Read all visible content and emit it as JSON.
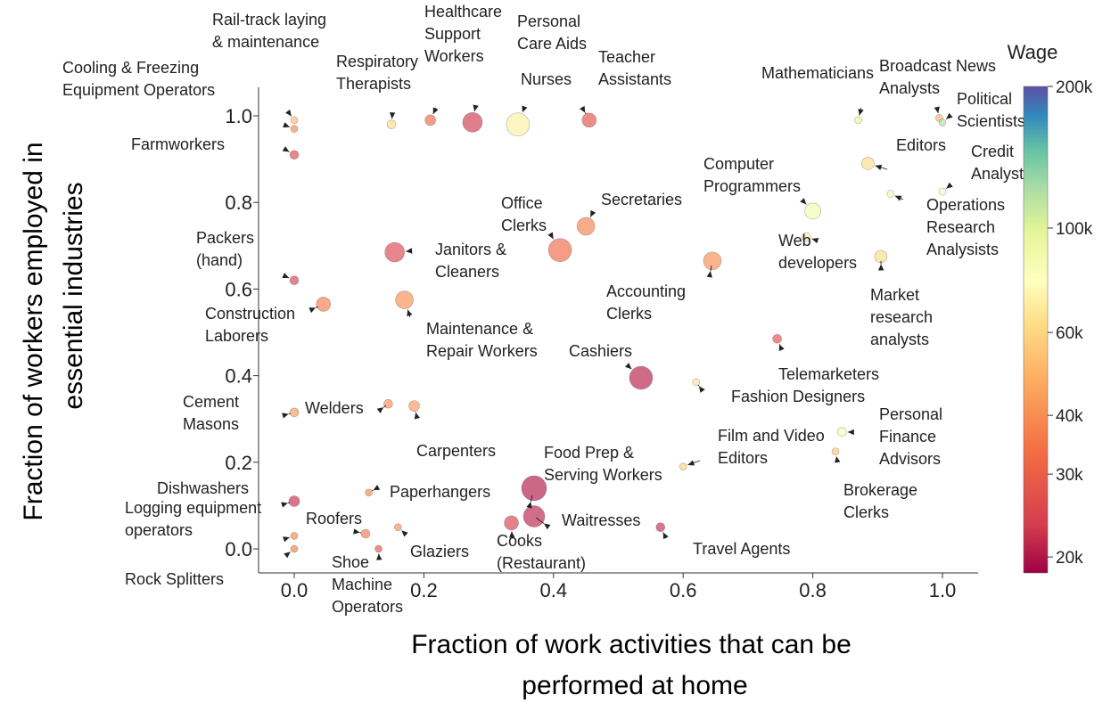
{
  "chart_data": {
    "type": "scatter",
    "xlabel": [
      "Fraction of work activities that can be",
      "performed at home"
    ],
    "ylabel": [
      "Fraction of workers employed in",
      "essential industries"
    ],
    "xlim": [
      -0.05,
      1.05
    ],
    "ylim": [
      -0.05,
      1.07
    ],
    "xticks": [
      0.0,
      0.2,
      0.4,
      0.6,
      0.8,
      1.0
    ],
    "xtick_labels": [
      "0.0",
      "0.2",
      "0.4",
      "0.6",
      "0.8",
      "1.0"
    ],
    "yticks": [
      0.0,
      0.2,
      0.4,
      0.6,
      0.8,
      1.0
    ],
    "ytick_labels": [
      "0.0",
      "0.2",
      "0.4",
      "0.6",
      "0.8",
      "1.0"
    ],
    "grid": false,
    "colorbar": {
      "title": "Wage",
      "scale": "log",
      "range": [
        18500,
        200000
      ],
      "ticks": [
        20000,
        30000,
        40000,
        60000,
        100000,
        200000
      ],
      "tick_labels": [
        "20k",
        "30k",
        "40k",
        "60k",
        "100k",
        "200k"
      ],
      "colormap": "Spectral",
      "colors": [
        "#9e0142",
        "#d53e4f",
        "#f46d43",
        "#fdae61",
        "#fee08b",
        "#ffffbf",
        "#e6f598",
        "#abdda4",
        "#66c2a5",
        "#3288bd",
        "#5e4fa2"
      ]
    },
    "marker_alpha": 0.65,
    "labeled_occupations": [
      {
        "label": "Rail-track laying\n& maintenance",
        "x": 0.0,
        "y": 0.99,
        "wage": 52000,
        "size": 4
      },
      {
        "label": "Cooling & Freezing\nEquipment Operators",
        "x": 0.0,
        "y": 0.97,
        "wage": 38000,
        "size": 4
      },
      {
        "label": "Farmworkers",
        "x": 0.0,
        "y": 0.91,
        "wage": 25000,
        "size": 5
      },
      {
        "label": "Respiratory\nTherapists",
        "x": 0.15,
        "y": 0.98,
        "wage": 62000,
        "size": 5
      },
      {
        "label": "Healthcare\nSupport\nWorkers",
        "x": 0.21,
        "y": 0.99,
        "wage": 32000,
        "size": 6
      },
      {
        "label": "Personal\nCare Aids",
        "x": 0.275,
        "y": 0.985,
        "wage": 23000,
        "size": 11
      },
      {
        "label": "Nurses",
        "x": 0.345,
        "y": 0.98,
        "wage": 70000,
        "size": 13
      },
      {
        "label": "Teacher\nAssistants",
        "x": 0.455,
        "y": 0.99,
        "wage": 27000,
        "size": 8
      },
      {
        "label": "Mathematicians",
        "x": 0.87,
        "y": 0.99,
        "wage": 95000,
        "size": 4
      },
      {
        "label": "Broadcast News\nAnalysts",
        "x": 0.995,
        "y": 0.995,
        "wage": 50000,
        "size": 4
      },
      {
        "label": "Political\nScientists",
        "x": 1.0,
        "y": 0.985,
        "wage": 120000,
        "size": 4
      },
      {
        "label": "Editors",
        "x": 0.885,
        "y": 0.89,
        "wage": 62000,
        "size": 7
      },
      {
        "label": "Credit\nAnalysts",
        "x": 1.0,
        "y": 0.825,
        "wage": 80000,
        "size": 4
      },
      {
        "label": "Operations\nResearch\nAnalysists",
        "x": 0.92,
        "y": 0.82,
        "wage": 85000,
        "size": 4
      },
      {
        "label": "Computer\nProgrammers",
        "x": 0.8,
        "y": 0.78,
        "wage": 85000,
        "size": 9
      },
      {
        "label": "Web\ndevelopers",
        "x": 0.79,
        "y": 0.72,
        "wage": 70000,
        "size": 5
      },
      {
        "label": "Market\nresearch\nanalysts",
        "x": 0.905,
        "y": 0.675,
        "wage": 62000,
        "size": 7
      },
      {
        "label": "Secretaries",
        "x": 0.45,
        "y": 0.745,
        "wage": 37000,
        "size": 10
      },
      {
        "label": "Office\nClerks",
        "x": 0.41,
        "y": 0.69,
        "wage": 32000,
        "size": 13
      },
      {
        "label": "Janitors &\nCleaners",
        "x": 0.155,
        "y": 0.685,
        "wage": 25000,
        "size": 11
      },
      {
        "label": "Packers\n(hand)",
        "x": 0.0,
        "y": 0.62,
        "wage": 24000,
        "size": 5
      },
      {
        "label": "Construction\nLaborers",
        "x": 0.045,
        "y": 0.565,
        "wage": 36000,
        "size": 8
      },
      {
        "label": "Maintenance &\nRepair Workers",
        "x": 0.17,
        "y": 0.575,
        "wage": 40000,
        "size": 10
      },
      {
        "label": "Accounting\nClerks",
        "x": 0.645,
        "y": 0.665,
        "wage": 40000,
        "size": 10
      },
      {
        "label": "Cashiers",
        "x": 0.535,
        "y": 0.395,
        "wage": 20500,
        "size": 13
      },
      {
        "label": "Telemarketers",
        "x": 0.745,
        "y": 0.485,
        "wage": 27000,
        "size": 5
      },
      {
        "label": "Fashion Designers",
        "x": 0.62,
        "y": 0.385,
        "wage": 65000,
        "size": 4
      },
      {
        "label": "Cement\nMasons",
        "x": 0.0,
        "y": 0.315,
        "wage": 42000,
        "size": 5
      },
      {
        "label": "Welders",
        "x": 0.145,
        "y": 0.335,
        "wage": 40000,
        "size": 5
      },
      {
        "label": "Carpenters",
        "x": 0.185,
        "y": 0.33,
        "wage": 42000,
        "size": 6
      },
      {
        "label": "Food Prep &\nServing Workers",
        "x": 0.37,
        "y": 0.14,
        "wage": 20000,
        "size": 14
      },
      {
        "label": "Film and Video\nEditors",
        "x": 0.6,
        "y": 0.19,
        "wage": 58000,
        "size": 4
      },
      {
        "label": "Personal\nFinance\nAdvisors",
        "x": 0.845,
        "y": 0.27,
        "wage": 75000,
        "size": 5
      },
      {
        "label": "Brokerage\nClerks",
        "x": 0.835,
        "y": 0.225,
        "wage": 55000,
        "size": 4
      },
      {
        "label": "Dishwashers",
        "x": 0.0,
        "y": 0.11,
        "wage": 22000,
        "size": 6
      },
      {
        "label": "Logging equipment\noperators",
        "x": 0.0,
        "y": 0.03,
        "wage": 38000,
        "size": 4
      },
      {
        "label": "Rock Splitters",
        "x": 0.0,
        "y": 0.0,
        "wage": 36000,
        "size": 4
      },
      {
        "label": "Paperhangers",
        "x": 0.115,
        "y": 0.13,
        "wage": 38000,
        "size": 4
      },
      {
        "label": "Roofers",
        "x": 0.11,
        "y": 0.035,
        "wage": 36000,
        "size": 5
      },
      {
        "label": "Glaziers",
        "x": 0.16,
        "y": 0.05,
        "wage": 40000,
        "size": 4
      },
      {
        "label": "Shoe\nMachine\nOperators",
        "x": 0.13,
        "y": 0.0,
        "wage": 28000,
        "size": 4
      },
      {
        "label": "Waitresses",
        "x": 0.37,
        "y": 0.075,
        "wage": 21000,
        "size": 12
      },
      {
        "label": "Cooks\n(Restaurant)",
        "x": 0.335,
        "y": 0.06,
        "wage": 24000,
        "size": 8
      },
      {
        "label": "Travel Agents",
        "x": 0.565,
        "y": 0.05,
        "wage": 22000,
        "size": 5
      }
    ],
    "other_points_note": ""
  }
}
